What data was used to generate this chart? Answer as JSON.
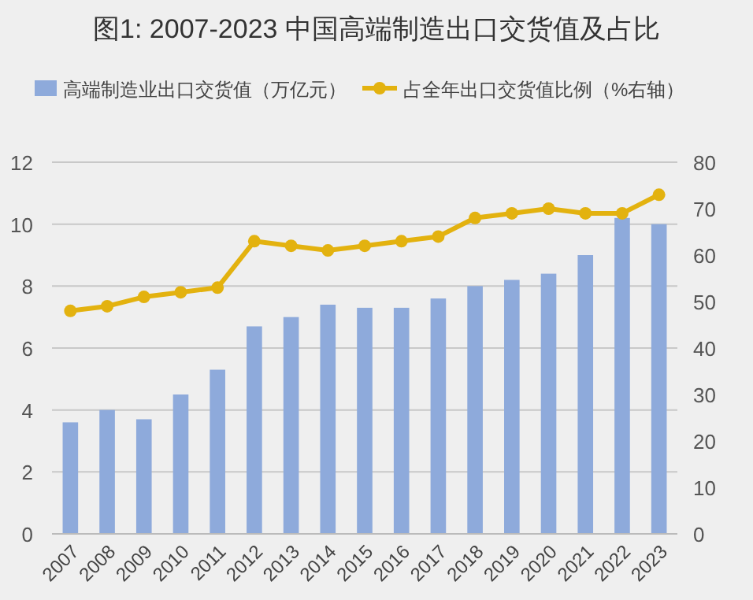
{
  "chart_data": {
    "type": "bar",
    "title": "图1: 2007-2023 中国高端制造出口交货值及占比",
    "categories": [
      "2007",
      "2008",
      "2009",
      "2010",
      "2011",
      "2012",
      "2013",
      "2014",
      "2015",
      "2016",
      "2017",
      "2018",
      "2019",
      "2020",
      "2021",
      "2022",
      "2023"
    ],
    "series": [
      {
        "name": "高端制造业出口交货值（万亿元）",
        "color": "#8eaadb",
        "values": [
          3.6,
          4.0,
          3.7,
          4.5,
          5.3,
          6.7,
          7.0,
          7.4,
          7.3,
          7.3,
          7.6,
          8.0,
          8.2,
          8.4,
          9.0,
          10.2,
          10.0
        ]
      },
      {
        "name": "占全年出口交货值比例（%右轴）",
        "type": "line",
        "axis": "y2",
        "color": "#e3b20f",
        "marker": "circle",
        "values": [
          48,
          49,
          51,
          52,
          53,
          63,
          62,
          61,
          62,
          63,
          64,
          68,
          69,
          70,
          69,
          69,
          73
        ]
      }
    ],
    "ylim": [
      0,
      12
    ],
    "yticks": [
      0,
      2,
      4,
      6,
      8,
      10,
      12
    ],
    "y2lim": [
      0,
      80
    ],
    "y2ticks": [
      0,
      10,
      20,
      30,
      40,
      50,
      60,
      70,
      80
    ],
    "grid": "y",
    "legend": "top"
  }
}
